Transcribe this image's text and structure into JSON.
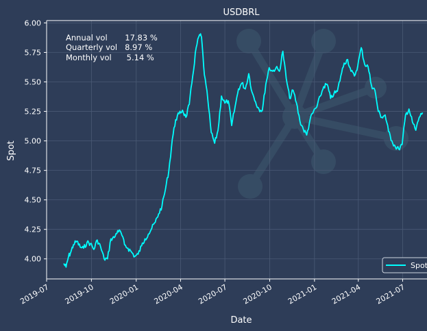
{
  "chart_data": {
    "type": "line",
    "title": "USDBRL",
    "xlabel": "Date",
    "ylabel": "Spot",
    "ylim": [
      3.83,
      6.02
    ],
    "xlim": [
      "2019-07-01",
      "2021-08-20"
    ],
    "yticks": [
      4.0,
      4.25,
      4.5,
      4.75,
      5.0,
      5.25,
      5.5,
      5.75,
      6.0
    ],
    "ytick_labels": [
      "4.00",
      "4.25",
      "4.50",
      "4.75",
      "5.00",
      "5.25",
      "5.50",
      "5.75",
      "6.00"
    ],
    "xticks": [
      "2019-07-01",
      "2019-10-01",
      "2020-01-01",
      "2020-04-01",
      "2020-07-01",
      "2020-10-01",
      "2021-01-01",
      "2021-04-01",
      "2021-07-01"
    ],
    "xtick_labels": [
      "2019-07",
      "2019-10",
      "2020-01",
      "2020-04",
      "2020-07",
      "2020-10",
      "2021-01",
      "2021-04",
      "2021-07"
    ],
    "grid": true,
    "legend_position": "bottom-right",
    "series": [
      {
        "name": "Spot",
        "color": "#00ffff",
        "x": [
          "2019-08-05",
          "2019-08-10",
          "2019-08-15",
          "2019-08-20",
          "2019-08-25",
          "2019-09-01",
          "2019-09-08",
          "2019-09-15",
          "2019-09-22",
          "2019-09-29",
          "2019-10-06",
          "2019-10-13",
          "2019-10-20",
          "2019-10-27",
          "2019-11-03",
          "2019-11-10",
          "2019-11-17",
          "2019-11-24",
          "2019-12-01",
          "2019-12-08",
          "2019-12-15",
          "2019-12-22",
          "2019-12-29",
          "2020-01-05",
          "2020-01-12",
          "2020-01-19",
          "2020-01-26",
          "2020-02-02",
          "2020-02-09",
          "2020-02-16",
          "2020-02-23",
          "2020-03-01",
          "2020-03-08",
          "2020-03-15",
          "2020-03-22",
          "2020-03-29",
          "2020-04-05",
          "2020-04-12",
          "2020-04-19",
          "2020-04-26",
          "2020-05-03",
          "2020-05-10",
          "2020-05-14",
          "2020-05-20",
          "2020-05-27",
          "2020-06-03",
          "2020-06-10",
          "2020-06-17",
          "2020-06-24",
          "2020-07-01",
          "2020-07-08",
          "2020-07-15",
          "2020-07-22",
          "2020-07-29",
          "2020-08-05",
          "2020-08-12",
          "2020-08-19",
          "2020-08-26",
          "2020-09-02",
          "2020-09-09",
          "2020-09-16",
          "2020-09-23",
          "2020-09-30",
          "2020-10-07",
          "2020-10-14",
          "2020-10-21",
          "2020-10-28",
          "2020-11-04",
          "2020-11-11",
          "2020-11-18",
          "2020-11-25",
          "2020-12-02",
          "2020-12-09",
          "2020-12-16",
          "2020-12-23",
          "2020-12-30",
          "2021-01-06",
          "2021-01-13",
          "2021-01-20",
          "2021-01-27",
          "2021-02-03",
          "2021-02-10",
          "2021-02-17",
          "2021-02-24",
          "2021-03-03",
          "2021-03-10",
          "2021-03-17",
          "2021-03-24",
          "2021-03-31",
          "2021-04-07",
          "2021-04-14",
          "2021-04-21",
          "2021-04-28",
          "2021-05-05",
          "2021-05-12",
          "2021-05-19",
          "2021-05-26",
          "2021-06-02",
          "2021-06-09",
          "2021-06-16",
          "2021-06-23",
          "2021-06-30",
          "2021-07-07",
          "2021-07-14",
          "2021-07-21",
          "2021-07-28",
          "2021-08-04",
          "2021-08-11"
        ],
        "values": [
          3.96,
          3.93,
          4.02,
          4.06,
          4.12,
          4.15,
          4.1,
          4.09,
          4.14,
          4.13,
          4.08,
          4.16,
          4.1,
          4.0,
          4.0,
          4.17,
          4.18,
          4.24,
          4.22,
          4.12,
          4.09,
          4.06,
          4.02,
          4.04,
          4.11,
          4.17,
          4.21,
          4.26,
          4.31,
          4.38,
          4.45,
          4.59,
          4.75,
          5.01,
          5.18,
          5.23,
          5.26,
          5.2,
          5.31,
          5.55,
          5.79,
          5.9,
          5.88,
          5.56,
          5.35,
          5.07,
          4.98,
          5.09,
          5.38,
          5.32,
          5.34,
          5.13,
          5.29,
          5.44,
          5.49,
          5.44,
          5.57,
          5.41,
          5.33,
          5.27,
          5.26,
          5.48,
          5.62,
          5.59,
          5.62,
          5.59,
          5.76,
          5.53,
          5.36,
          5.43,
          5.32,
          5.17,
          5.1,
          5.05,
          5.18,
          5.25,
          5.29,
          5.38,
          5.46,
          5.48,
          5.36,
          5.4,
          5.42,
          5.55,
          5.66,
          5.69,
          5.59,
          5.55,
          5.64,
          5.79,
          5.65,
          5.63,
          5.47,
          5.43,
          5.25,
          5.2,
          5.22,
          5.08,
          5.0,
          4.95,
          4.93,
          4.97,
          5.22,
          5.27,
          5.16,
          5.09,
          5.2,
          5.24
        ]
      }
    ],
    "annotation_lines": [
      "Annual vol       17.83 %",
      "Quarterly vol   8.97 %",
      "Monthly vol      5.14 %"
    ]
  }
}
